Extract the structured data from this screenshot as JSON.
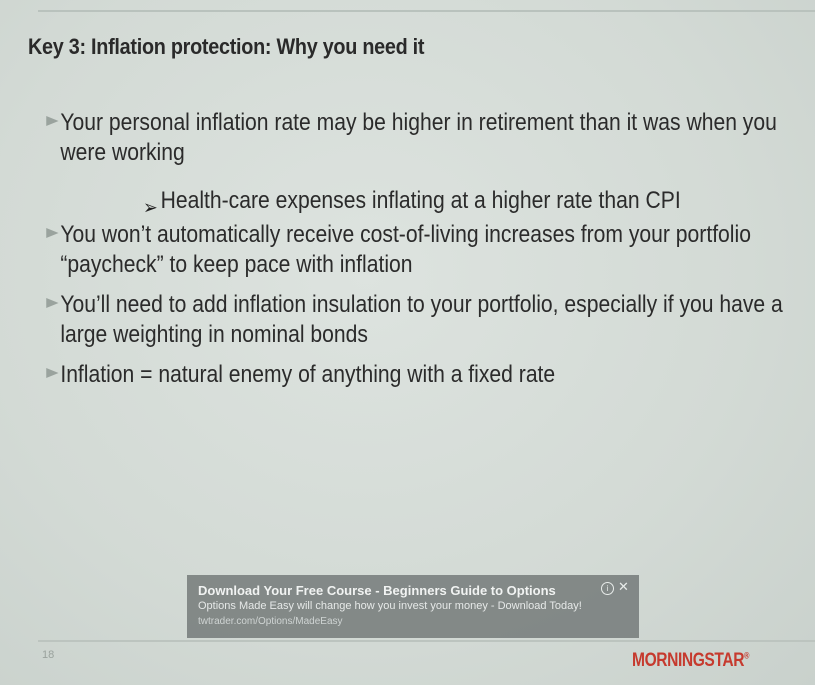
{
  "slide": {
    "title": "Key 3: Inflation protection: Why you need it",
    "bullets": [
      "Your personal inflation rate may be higher in retirement than it was when you were working",
      "You won’t automatically receive cost-of-living increases from your portfolio “paycheck” to keep pace with inflation",
      "You’ll need to add inflation insulation to your portfolio, especially if you have a large weighting in nominal bonds",
      "Inflation = natural enemy of anything with a fixed rate"
    ],
    "sub_bullet": "Health-care expenses inflating at a higher rate than CPI",
    "page_number": "18",
    "logo_text": "MORNINGSTAR",
    "logo_mark": "®"
  },
  "ad": {
    "title": "Download Your Free Course - Beginners Guide to Options",
    "description": "Options Made Easy will change how you invest your money - Download Today!",
    "url": "twtrader.com/Options/MadeEasy",
    "info_glyph": "i",
    "close_glyph": "✕"
  },
  "icons": {
    "bullet": "arrow-bullet-icon",
    "sub_bullet": "sub-arrow-icon",
    "info": "info-icon",
    "close": "close-icon"
  }
}
